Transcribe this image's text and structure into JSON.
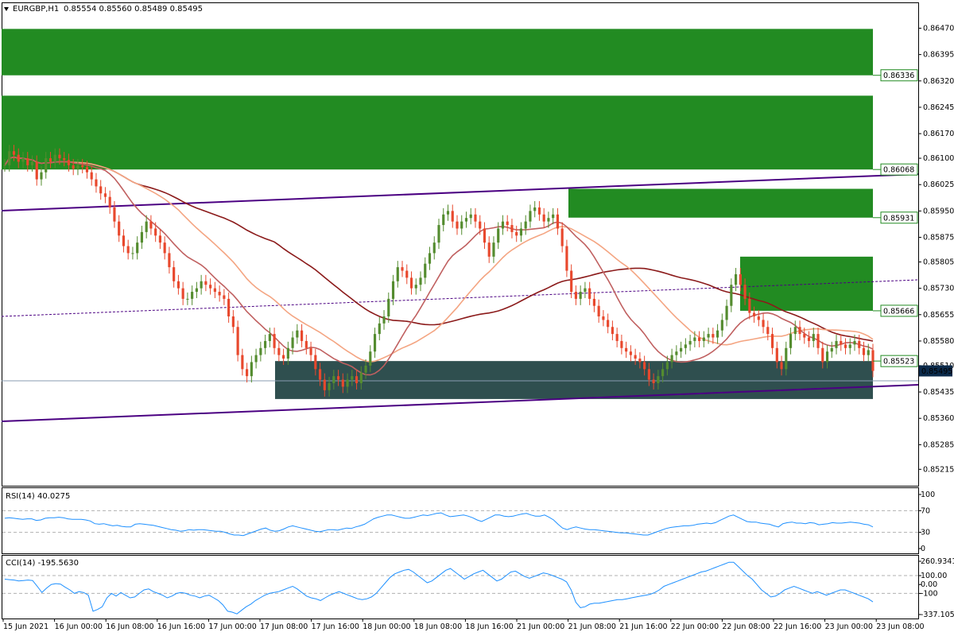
{
  "header": {
    "symbol": "EURGBP,H1",
    "ohlc": "0.85554 0.85560 0.85489 0.85495"
  },
  "colors": {
    "bull": "#548c2f",
    "bear": "#e8482d",
    "supply_zone": "#228b22",
    "demand_zone": "#2f4f4f",
    "trendline": "#4b0082",
    "ma_dark": "#8b1a1a",
    "ma_mid": "#c06060",
    "ma_light": "#f4a582",
    "indicator": "#1e90ff",
    "price_tag": "#0b2a4a"
  },
  "chart_data": [
    {
      "type": "candlestick",
      "title": "EURGBP,H1",
      "ylim": [
        0.85175,
        0.86505
      ],
      "y_ticks": [
        "0.86470",
        "0.86395",
        "0.86320",
        "0.86245",
        "0.86170",
        "0.86100",
        "0.86025",
        "0.85950",
        "0.85875",
        "0.85805",
        "0.85730",
        "0.85655",
        "0.85580",
        "0.85510",
        "0.85435",
        "0.85360",
        "0.85285",
        "0.85215"
      ],
      "x_ticks": [
        "15 Jun 2021",
        "16 Jun 00:00",
        "16 Jun 08:00",
        "16 Jun 16:00",
        "17 Jun 00:00",
        "17 Jun 08:00",
        "17 Jun 16:00",
        "18 Jun 00:00",
        "18 Jun 08:00",
        "18 Jun 16:00",
        "21 Jun 00:00",
        "21 Jun 08:00",
        "21 Jun 16:00",
        "22 Jun 00:00",
        "22 Jun 08:00",
        "22 Jun 16:00",
        "23 Jun 00:00",
        "23 Jun 08:00"
      ],
      "current_price": "0.85495",
      "zone_levels": [
        "0.86336",
        "0.86068",
        "0.85931",
        "0.85666",
        "0.85523"
      ],
      "zones": [
        {
          "kind": "supply",
          "top": 0.86468,
          "bottom": 0.86336
        },
        {
          "kind": "supply",
          "top": 0.86278,
          "bottom": 0.86068
        },
        {
          "kind": "supply",
          "top": 0.86013,
          "bottom": 0.85931
        },
        {
          "kind": "supply",
          "top": 0.8582,
          "bottom": 0.85666
        },
        {
          "kind": "demand",
          "top": 0.85523,
          "bottom": 0.85415
        }
      ],
      "closes": [
        0.8608,
        0.8612,
        0.8611,
        0.8609,
        0.861,
        0.8608,
        0.8609,
        0.8604,
        0.8606,
        0.861,
        0.8609,
        0.8611,
        0.861,
        0.86095,
        0.8608,
        0.8607,
        0.8608,
        0.86075,
        0.8606,
        0.8604,
        0.8602,
        0.86,
        0.8599,
        0.8596,
        0.8592,
        0.8588,
        0.8585,
        0.8583,
        0.8583,
        0.8586,
        0.8589,
        0.8592,
        0.859,
        0.8588,
        0.8586,
        0.8583,
        0.8579,
        0.8575,
        0.8573,
        0.857,
        0.857,
        0.8572,
        0.8573,
        0.8575,
        0.8574,
        0.8573,
        0.8572,
        0.8571,
        0.857,
        0.8565,
        0.8562,
        0.8554,
        0.855,
        0.8548,
        0.8552,
        0.8554,
        0.8556,
        0.8558,
        0.856,
        0.8556,
        0.8554,
        0.8553,
        0.8556,
        0.8559,
        0.8561,
        0.8558,
        0.8556,
        0.8554,
        0.855,
        0.8547,
        0.8544,
        0.8546,
        0.8548,
        0.8547,
        0.8545,
        0.8547,
        0.8548,
        0.8546,
        0.8549,
        0.8551,
        0.8555,
        0.856,
        0.8563,
        0.8565,
        0.857,
        0.8575,
        0.8579,
        0.8578,
        0.8576,
        0.8573,
        0.8574,
        0.8576,
        0.858,
        0.8583,
        0.8586,
        0.8591,
        0.8594,
        0.8595,
        0.8592,
        0.859,
        0.8592,
        0.8593,
        0.8594,
        0.8592,
        0.859,
        0.8586,
        0.8582,
        0.8586,
        0.859,
        0.8592,
        0.8591,
        0.8589,
        0.8588,
        0.859,
        0.8592,
        0.8595,
        0.8596,
        0.8594,
        0.8592,
        0.8593,
        0.8594,
        0.859,
        0.8585,
        0.8578,
        0.8572,
        0.857,
        0.8572,
        0.8573,
        0.857,
        0.8568,
        0.8565,
        0.8564,
        0.8562,
        0.856,
        0.8558,
        0.8556,
        0.8555,
        0.8554,
        0.8553,
        0.8552,
        0.855,
        0.8547,
        0.8546,
        0.8548,
        0.855,
        0.8552,
        0.8554,
        0.8555,
        0.8556,
        0.8557,
        0.8558,
        0.8559,
        0.8558,
        0.8559,
        0.856,
        0.8559,
        0.8561,
        0.8564,
        0.8568,
        0.8574,
        0.8577,
        0.8574,
        0.857,
        0.8566,
        0.8565,
        0.8564,
        0.8562,
        0.856,
        0.8556,
        0.8552,
        0.855,
        0.8556,
        0.856,
        0.8562,
        0.856,
        0.8559,
        0.8558,
        0.856,
        0.8556,
        0.8552,
        0.8555,
        0.8556,
        0.8558,
        0.8557,
        0.8556,
        0.8557,
        0.8558,
        0.8556,
        0.8554,
        0.85554,
        0.85495
      ]
    },
    {
      "type": "line",
      "title": "RSI(14) 40.0275",
      "ylim": [
        0,
        100
      ],
      "y_ticks": [
        "100",
        "70",
        "30",
        "0"
      ],
      "values": [
        56,
        57,
        56,
        55,
        54,
        55,
        55,
        52,
        53,
        56,
        57,
        57,
        58,
        57,
        55,
        54,
        54,
        54,
        53,
        51,
        46,
        45,
        46,
        44,
        42,
        43,
        41,
        40,
        40,
        45,
        46,
        45,
        44,
        43,
        41,
        39,
        37,
        35,
        34,
        32,
        33,
        35,
        34,
        35,
        35,
        34,
        33,
        32,
        32,
        30,
        27,
        25,
        25,
        24,
        27,
        30,
        33,
        36,
        38,
        34,
        32,
        33,
        36,
        40,
        42,
        40,
        38,
        36,
        34,
        32,
        31,
        33,
        35,
        35,
        34,
        36,
        38,
        37,
        40,
        42,
        45,
        50,
        55,
        58,
        60,
        62,
        62,
        60,
        58,
        56,
        56,
        58,
        60,
        62,
        61,
        63,
        65,
        66,
        62,
        59,
        60,
        61,
        62,
        60,
        57,
        53,
        50,
        54,
        58,
        62,
        62,
        60,
        59,
        60,
        62,
        64,
        65,
        62,
        60,
        60,
        62,
        58,
        53,
        45,
        38,
        35,
        38,
        40,
        38,
        36,
        35,
        35,
        34,
        33,
        32,
        31,
        30,
        29,
        29,
        28,
        27,
        26,
        25,
        25,
        28,
        31,
        34,
        37,
        39,
        40,
        41,
        42,
        42,
        43,
        45,
        46,
        47,
        46,
        48,
        52,
        56,
        60,
        62,
        58,
        54,
        50,
        49,
        49,
        47,
        46,
        45,
        42,
        40,
        46,
        48,
        49,
        47,
        47,
        46,
        48,
        47,
        44,
        45,
        46,
        48,
        47,
        47,
        48,
        49,
        48,
        47,
        45,
        44,
        40
      ]
    },
    {
      "type": "line",
      "title": "CCI(14) -195.5630",
      "ylim": [
        -337.105,
        260.9341
      ],
      "y_ticks": [
        "260.9341",
        "100.00",
        "0.00",
        "-100",
        "-337.105"
      ],
      "values": [
        60,
        55,
        50,
        40,
        45,
        50,
        45,
        -20,
        -90,
        -40,
        0,
        10,
        5,
        -30,
        -60,
        -100,
        -80,
        -90,
        -120,
        -300,
        -280,
        -250,
        -150,
        -100,
        -130,
        -90,
        -120,
        -150,
        -140,
        -100,
        -60,
        -50,
        -80,
        -100,
        -120,
        -150,
        -130,
        -100,
        -90,
        -100,
        -120,
        -130,
        -150,
        -130,
        -120,
        -150,
        -180,
        -230,
        -300,
        -310,
        -330,
        -290,
        -250,
        -220,
        -180,
        -150,
        -120,
        -100,
        -90,
        -80,
        -60,
        -40,
        -20,
        -50,
        -90,
        -130,
        -150,
        -160,
        -180,
        -150,
        -120,
        -100,
        -80,
        -100,
        -120,
        -140,
        -160,
        -170,
        -160,
        -140,
        -100,
        -40,
        20,
        80,
        120,
        140,
        160,
        170,
        140,
        100,
        60,
        20,
        40,
        80,
        120,
        160,
        180,
        140,
        100,
        60,
        90,
        120,
        140,
        160,
        120,
        80,
        40,
        60,
        100,
        140,
        150,
        120,
        90,
        70,
        90,
        110,
        130,
        120,
        100,
        80,
        60,
        30,
        -60,
        -200,
        -260,
        -250,
        -220,
        -210,
        -210,
        -200,
        -190,
        -180,
        -170,
        -170,
        -160,
        -150,
        -140,
        -130,
        -120,
        -110,
        -90,
        -60,
        -20,
        0,
        20,
        40,
        60,
        80,
        100,
        120,
        140,
        150,
        170,
        190,
        210,
        230,
        250,
        250,
        200,
        150,
        100,
        60,
        0,
        -60,
        -100,
        -140,
        -130,
        -100,
        -60,
        -40,
        -20,
        -40,
        -60,
        -80,
        -100,
        -80,
        -100,
        -120,
        -100,
        -80,
        -60,
        -60,
        -80,
        -100,
        -120,
        -140,
        -160,
        -195.563
      ]
    }
  ]
}
